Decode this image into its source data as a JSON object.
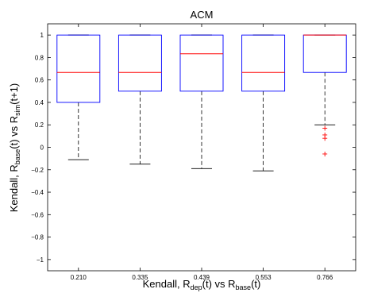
{
  "chart_data": {
    "type": "box",
    "title": "ACM",
    "xlabel": {
      "parts": [
        {
          "text": "Kendall, R",
          "sub": false
        },
        {
          "text": "dep",
          "sub": true
        },
        {
          "text": "(t) vs R",
          "sub": false
        },
        {
          "text": "base",
          "sub": true
        },
        {
          "text": "(t)",
          "sub": false
        }
      ]
    },
    "ylabel": {
      "parts": [
        {
          "text": "Kendall, R",
          "sub": false
        },
        {
          "text": "base",
          "sub": true
        },
        {
          "text": "(t) vs R",
          "sub": false
        },
        {
          "text": "sim",
          "sub": true
        },
        {
          "text": "(t+1)",
          "sub": false
        }
      ]
    },
    "categories": [
      "0.210",
      "0.335",
      "0.439",
      "0.553",
      "0.766"
    ],
    "ylim": [
      -1.1,
      1.1
    ],
    "yticks": [
      -1,
      -0.8,
      -0.6,
      -0.4,
      -0.2,
      0,
      0.2,
      0.4,
      0.6,
      0.8,
      1
    ],
    "ytick_labels": [
      "−1",
      "−0.8",
      "−0.6",
      "−0.4",
      "−0.2",
      "0",
      "0.2",
      "0.4",
      "0.6",
      "0.8",
      "1"
    ],
    "boxes": [
      {
        "whisker_low": -0.11,
        "q1": 0.4,
        "median": 0.667,
        "q3": 1.0,
        "whisker_high": 1.0,
        "outliers": []
      },
      {
        "whisker_low": -0.15,
        "q1": 0.5,
        "median": 0.667,
        "q3": 1.0,
        "whisker_high": 1.0,
        "outliers": []
      },
      {
        "whisker_low": -0.19,
        "q1": 0.5,
        "median": 0.833,
        "q3": 1.0,
        "whisker_high": 1.0,
        "outliers": []
      },
      {
        "whisker_low": -0.21,
        "q1": 0.5,
        "median": 0.667,
        "q3": 1.0,
        "whisker_high": 1.0,
        "outliers": []
      },
      {
        "whisker_low": 0.2,
        "q1": 0.667,
        "median": 1.0,
        "q3": 1.0,
        "whisker_high": 1.0,
        "outliers": [
          0.17,
          0.11,
          0.08,
          -0.06
        ]
      }
    ],
    "grid": false,
    "colors": {
      "box": "#0000ff",
      "median": "#ff0000",
      "whisker": "#000000",
      "outlier": "#ff0000"
    }
  }
}
